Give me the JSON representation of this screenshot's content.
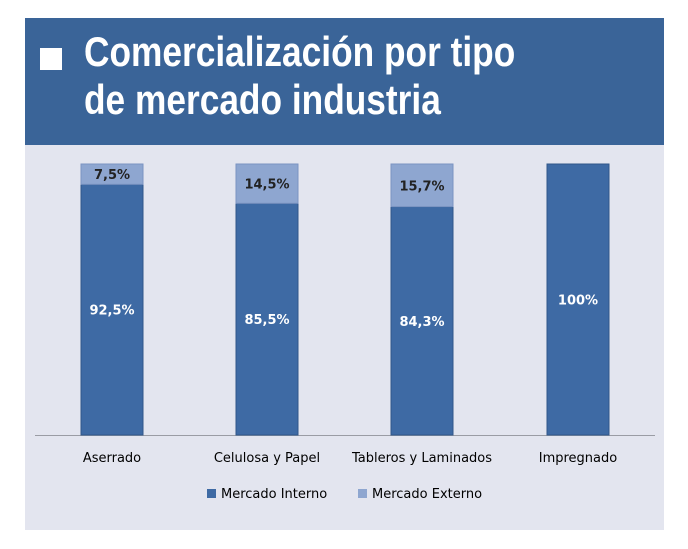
{
  "header": {
    "title": "Comercialización por tipo de mercado industria"
  },
  "chart_data": {
    "type": "bar",
    "stacked": true,
    "title": "Comercialización por tipo de mercado industria",
    "categories": [
      "Aserrado",
      "Celulosa y Papel",
      "Tableros y Laminados",
      "Impregnado"
    ],
    "series": [
      {
        "name": "Mercado Interno",
        "values": [
          92.5,
          85.5,
          84.3,
          100
        ],
        "labels": [
          "92,5%",
          "85,5%",
          "84,3%",
          "100%"
        ],
        "color": "#3e6aa4"
      },
      {
        "name": "Mercado Externo",
        "values": [
          7.5,
          14.5,
          15.7,
          0
        ],
        "labels": [
          "7,5%",
          "14,5%",
          "15,7%",
          ""
        ],
        "color": "#8ea6d0"
      }
    ],
    "ylim": [
      0,
      100
    ],
    "grid": false,
    "legend": "bottom",
    "xlabel": "",
    "ylabel": ""
  }
}
